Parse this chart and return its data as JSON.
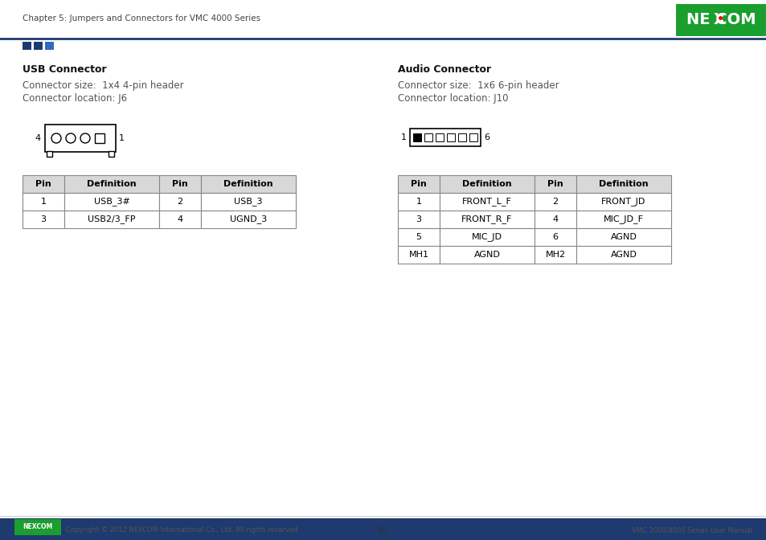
{
  "page_header": "Chapter 5: Jumpers and Connectors for VMC 4000 Series",
  "page_footer_left": "Copyright © 2012 NEXCOM International Co., Ltd. All rights reserved",
  "page_footer_center": "82",
  "page_footer_right": "VMC 3000/4000 Series User Manual",
  "usb_title": "USB Connector",
  "usb_size": "Connector size:  1x4 4-pin header",
  "usb_location": "Connector location: J6",
  "audio_title": "Audio Connector",
  "audio_size": "Connector size:  1x6 6-pin header",
  "audio_location": "Connector location: J10",
  "usb_table_headers": [
    "Pin",
    "Definition",
    "Pin",
    "Definition"
  ],
  "usb_table_data": [
    [
      "1",
      "USB_3#",
      "2",
      "USB_3"
    ],
    [
      "3",
      "USB2/3_FP",
      "4",
      "UGND_3"
    ]
  ],
  "audio_table_headers": [
    "Pin",
    "Definition",
    "Pin",
    "Definition"
  ],
  "audio_table_data": [
    [
      "1",
      "FRONT_L_F",
      "2",
      "FRONT_JD"
    ],
    [
      "3",
      "FRONT_R_F",
      "4",
      "MIC_JD_F"
    ],
    [
      "5",
      "MIC_JD",
      "6",
      "AGND"
    ],
    [
      "MH1",
      "AGND",
      "MH2",
      "AGND"
    ]
  ],
  "header_line_color": "#1e3a6e",
  "accent_color1": "#1e3a6e",
  "accent_color2": "#2e6bbf",
  "background_color": "#ffffff",
  "nexcom_green": "#1a9e2e",
  "footer_bar_color": "#1e3a6e",
  "table_header_bg": "#d8d8d8",
  "table_border": "#888888"
}
